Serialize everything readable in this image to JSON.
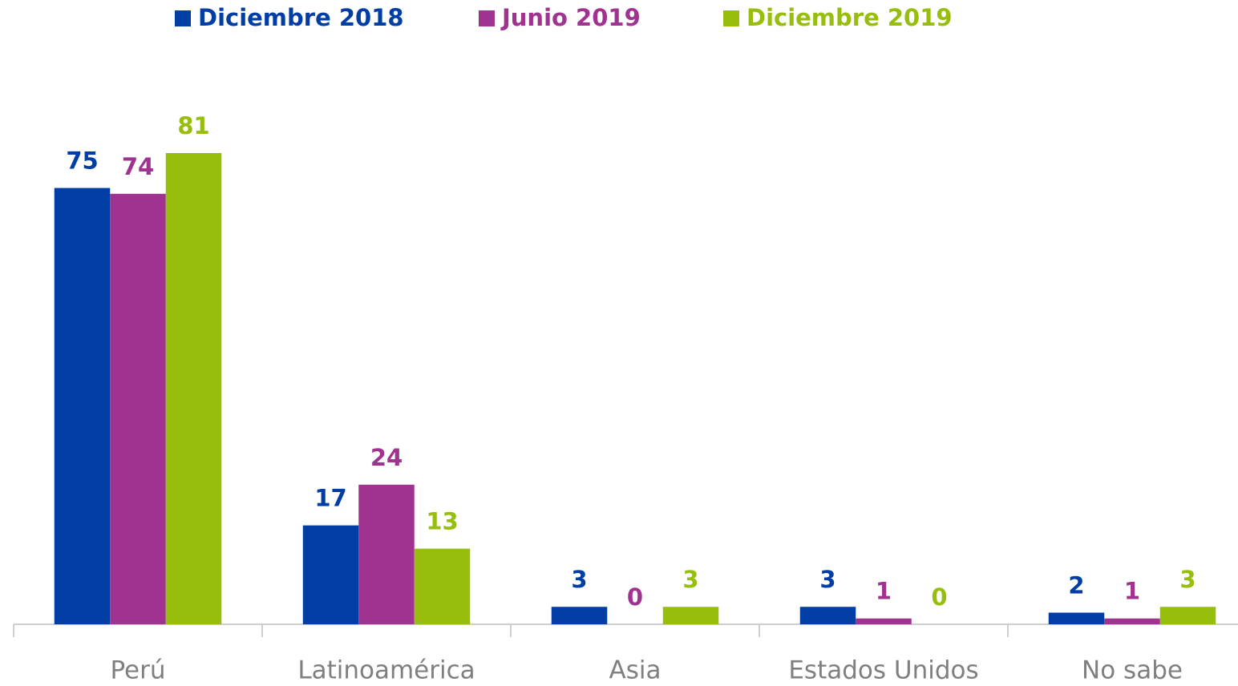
{
  "chart_data": {
    "type": "bar",
    "categories": [
      "Perú",
      "Latinoamérica",
      "Asia",
      "Estados Unidos",
      "No sabe"
    ],
    "series": [
      {
        "name": "Diciembre 2018",
        "color": "#003DA5",
        "values": [
          75,
          17,
          3,
          3,
          2
        ]
      },
      {
        "name": "Junio 2019",
        "color": "#A03290",
        "values": [
          74,
          24,
          0,
          1,
          1
        ]
      },
      {
        "name": "Diciembre 2019",
        "color": "#97BE0D",
        "values": [
          81,
          13,
          3,
          0,
          3
        ]
      }
    ],
    "legend": "top"
  }
}
